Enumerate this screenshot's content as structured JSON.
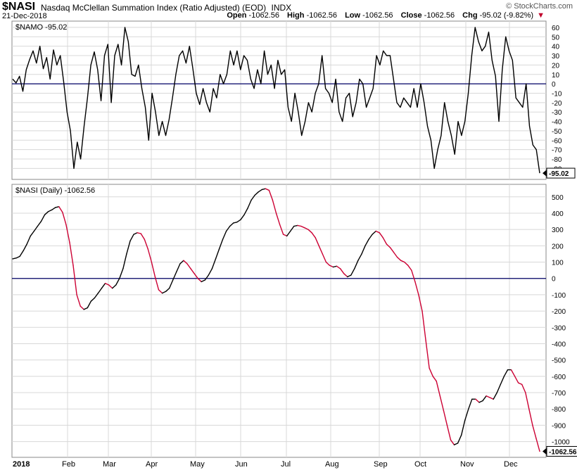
{
  "header": {
    "symbol": "$NASI",
    "name": "Nasdaq McClellan Summation Index (Ratio Adjusted) (EOD)",
    "exchange": "INDX",
    "date": "21-Dec-2018",
    "brand": "© StockCharts.com",
    "open_label": "Open",
    "open": "-1062.56",
    "high_label": "High",
    "high": "-1062.56",
    "low_label": "Low",
    "low": "-1062.56",
    "close_label": "Close",
    "close": "-1062.56",
    "chg_label": "Chg",
    "chg": "-95.02 (-9.82%)",
    "chg_marker": "▼"
  },
  "colors": {
    "line": "#000000",
    "down": "#cc0033",
    "zero": "#000066",
    "grid": "#d8d8d8",
    "frame": "#888888"
  },
  "chart_data": [
    {
      "type": "line",
      "legend": "$NAMO -95.02",
      "last_value_label": "-95.02",
      "ylim": [
        -100,
        65
      ],
      "yticks": [
        60,
        50,
        40,
        30,
        20,
        10,
        0,
        -10,
        -20,
        -30,
        -40,
        -50,
        -60,
        -70,
        -80,
        -90
      ],
      "ytick_labels": [
        "60",
        "50",
        "40",
        "30",
        "20",
        "10",
        "0",
        "-10",
        "-20",
        "-30",
        "-40",
        "-50",
        "-60",
        "-70",
        "-80",
        "-90"
      ],
      "series": [
        {
          "values": [
            5,
            1,
            8,
            -8,
            15,
            26,
            35,
            22,
            40,
            16,
            28,
            5,
            36,
            20,
            30,
            2,
            -30,
            -50,
            -90,
            -62,
            -80,
            -45,
            -15,
            20,
            34,
            15,
            -18,
            30,
            42,
            -20,
            30,
            42,
            20,
            60,
            45,
            10,
            8,
            20,
            -5,
            -25,
            -60,
            -10,
            -30,
            -55,
            -40,
            -55,
            -38,
            -15,
            10,
            30,
            35,
            22,
            40,
            16,
            -10,
            -22,
            -5,
            -20,
            -30,
            -5,
            -15,
            10,
            0,
            10,
            35,
            20,
            35,
            15,
            30,
            25,
            5,
            -5,
            15,
            0,
            35,
            10,
            20,
            -5,
            25,
            10,
            15,
            -25,
            -40,
            -10,
            -30,
            -55,
            -40,
            -20,
            -30,
            -10,
            0,
            30,
            -5,
            -10,
            -20,
            5,
            -30,
            -40,
            -15,
            -10,
            -35,
            -20,
            5,
            0,
            -25,
            -15,
            -5,
            30,
            20,
            35,
            30,
            30,
            5,
            -20,
            -25,
            -15,
            -20,
            -25,
            -5,
            -25,
            0,
            -20,
            -45,
            -60,
            -90,
            -70,
            -55,
            -20,
            -40,
            -55,
            -75,
            -40,
            -55,
            -40,
            -10,
            30,
            60,
            45,
            35,
            40,
            55,
            25,
            8,
            -40,
            15,
            50,
            35,
            25,
            -15,
            -20,
            -25,
            0,
            -45,
            -65,
            -70,
            -95
          ]
        }
      ],
      "x_dates": [],
      "xtick_labels": []
    },
    {
      "type": "line",
      "legend": "$NASI (Daily) -1062.56",
      "last_value_label": "-1062.56",
      "ylim": [
        -1080,
        560
      ],
      "yticks": [
        500,
        400,
        300,
        200,
        100,
        0,
        -100,
        -200,
        -300,
        -400,
        -500,
        -600,
        -700,
        -800,
        -900,
        -1000
      ],
      "ytick_labels": [
        "500",
        "400",
        "300",
        "200",
        "100",
        "0",
        "-100",
        "-200",
        "-300",
        "-400",
        "-500",
        "-600",
        "-700",
        "-800",
        "-900",
        "-1000"
      ],
      "series": [
        {
          "values": [
            120,
            125,
            135,
            170,
            210,
            260,
            290,
            320,
            350,
            390,
            410,
            420,
            435,
            440,
            405,
            330,
            220,
            80,
            -100,
            -170,
            -190,
            -180,
            -140,
            -120,
            -90,
            -60,
            -30,
            -40,
            -60,
            -40,
            0,
            60,
            150,
            230,
            270,
            280,
            275,
            240,
            180,
            100,
            10,
            -70,
            -90,
            -80,
            -60,
            -10,
            40,
            90,
            110,
            90,
            60,
            30,
            0,
            -20,
            -10,
            20,
            60,
            120,
            180,
            240,
            290,
            320,
            340,
            345,
            360,
            390,
            430,
            480,
            510,
            530,
            545,
            550,
            540,
            480,
            400,
            330,
            270,
            260,
            290,
            320,
            325,
            320,
            310,
            300,
            280,
            250,
            200,
            150,
            100,
            80,
            70,
            75,
            60,
            30,
            10,
            20,
            60,
            110,
            150,
            200,
            240,
            270,
            290,
            280,
            250,
            210,
            190,
            160,
            130,
            110,
            100,
            80,
            50,
            -20,
            -100,
            -200,
            -380,
            -550,
            -600,
            -630,
            -720,
            -810,
            -900,
            -990,
            -1020,
            -1010,
            -960,
            -870,
            -800,
            -740,
            -740,
            -760,
            -750,
            -720,
            -730,
            -740,
            -700,
            -650,
            -600,
            -560,
            -560,
            -600,
            -640,
            -650,
            -700,
            -800,
            -900,
            -980,
            -1060
          ]
        }
      ],
      "xtick_labels": [
        "2018",
        "Feb",
        "Mar",
        "Apr",
        "May",
        "Jun",
        "Jul",
        "Aug",
        "Sep",
        "Oct",
        "Nov",
        "Dec"
      ]
    }
  ]
}
